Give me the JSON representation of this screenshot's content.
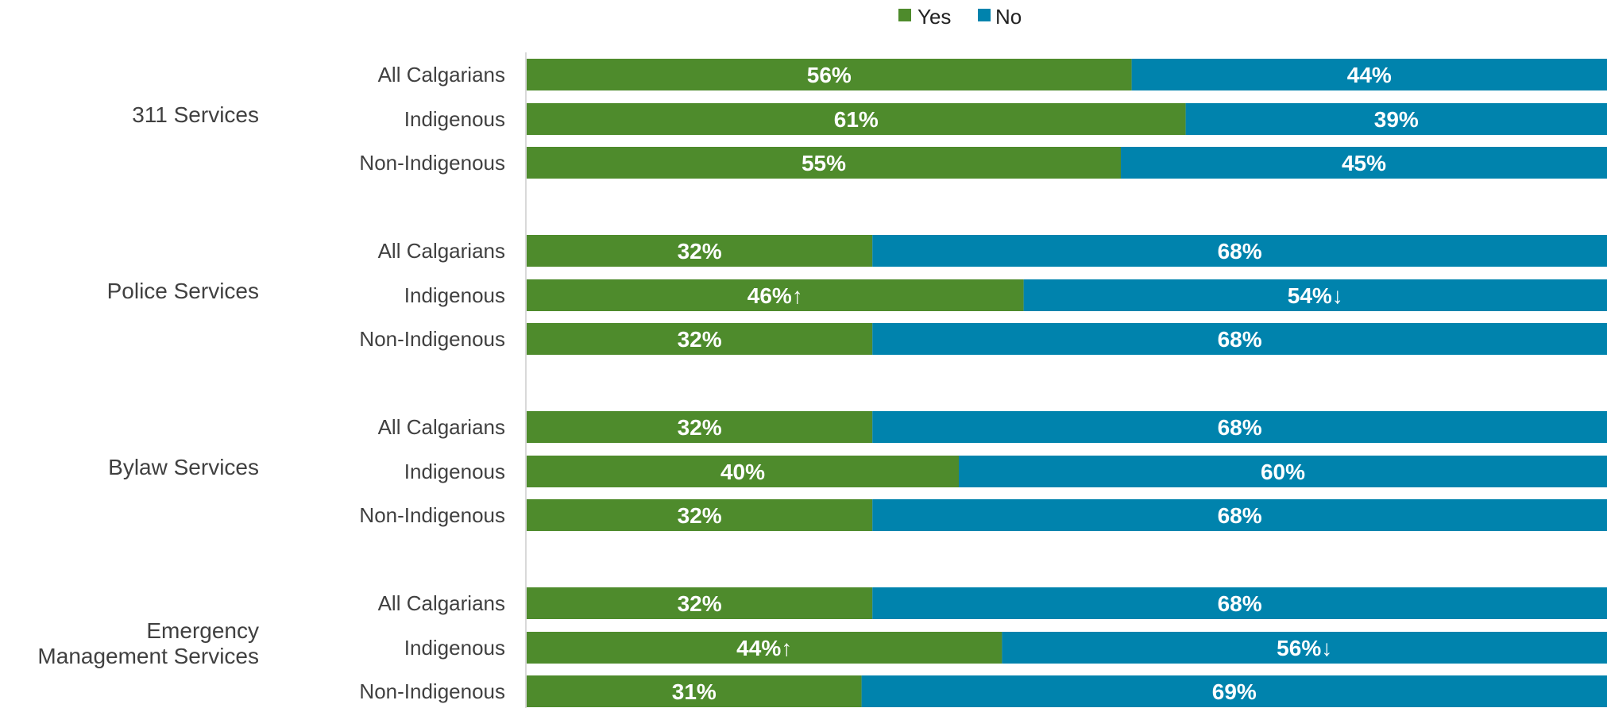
{
  "chart_data": {
    "type": "bar",
    "orientation": "horizontal",
    "stacked": true,
    "normalized_percent": true,
    "legend": {
      "position": "top",
      "entries": [
        "Yes",
        "No"
      ]
    },
    "colors": {
      "Yes": "#4e8b2c",
      "No": "#0083ad"
    },
    "xlim": [
      0,
      100
    ],
    "groups": [
      {
        "label": "311 Services",
        "rows": [
          {
            "label": "All Calgarians",
            "yes": 56,
            "no": 44,
            "yes_label": "56%",
            "no_label": "44%"
          },
          {
            "label": "Indigenous",
            "yes": 61,
            "no": 39,
            "yes_label": "61%",
            "no_label": "39%"
          },
          {
            "label": "Non-Indigenous",
            "yes": 55,
            "no": 45,
            "yes_label": "55%",
            "no_label": "45%"
          }
        ]
      },
      {
        "label": "Police Services",
        "rows": [
          {
            "label": "All Calgarians",
            "yes": 32,
            "no": 68,
            "yes_label": "32%",
            "no_label": "68%"
          },
          {
            "label": "Indigenous",
            "yes": 46,
            "no": 54,
            "yes_label": "46%↑",
            "no_label": "54%↓"
          },
          {
            "label": "Non-Indigenous",
            "yes": 32,
            "no": 68,
            "yes_label": "32%",
            "no_label": "68%"
          }
        ]
      },
      {
        "label": "Bylaw Services",
        "rows": [
          {
            "label": "All Calgarians",
            "yes": 32,
            "no": 68,
            "yes_label": "32%",
            "no_label": "68%"
          },
          {
            "label": "Indigenous",
            "yes": 40,
            "no": 60,
            "yes_label": "40%",
            "no_label": "60%"
          },
          {
            "label": "Non-Indigenous",
            "yes": 32,
            "no": 68,
            "yes_label": "32%",
            "no_label": "68%"
          }
        ]
      },
      {
        "label": [
          "Emergency",
          "Management Services"
        ],
        "rows": [
          {
            "label": "All Calgarians",
            "yes": 32,
            "no": 68,
            "yes_label": "32%",
            "no_label": "68%"
          },
          {
            "label": "Indigenous",
            "yes": 44,
            "no": 56,
            "yes_label": "44%↑",
            "no_label": "56%↓"
          },
          {
            "label": "Non-Indigenous",
            "yes": 31,
            "no": 69,
            "yes_label": "31%",
            "no_label": "69%"
          }
        ]
      }
    ]
  }
}
